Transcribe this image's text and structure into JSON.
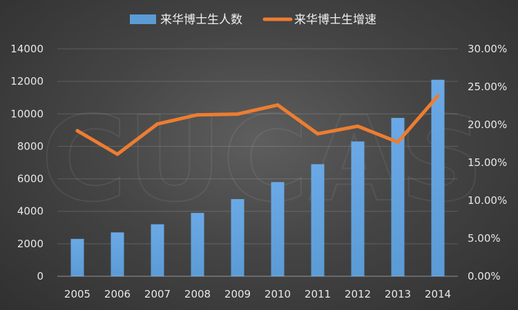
{
  "watermark": "CUCAS",
  "chart_data": {
    "type": "bar",
    "categories": [
      "2005",
      "2006",
      "2007",
      "2008",
      "2009",
      "2010",
      "2011",
      "2012",
      "2013",
      "2014"
    ],
    "series": [
      {
        "name": "来华博士生人数",
        "type": "bar",
        "axis": "left",
        "color": "#5b9bd5",
        "values": [
          2300,
          2700,
          3200,
          3900,
          4750,
          5800,
          6900,
          8300,
          9750,
          12100
        ]
      },
      {
        "name": "来华博士生增速",
        "type": "line",
        "axis": "right",
        "color": "#ed7d31",
        "values": [
          0.192,
          0.161,
          0.201,
          0.213,
          0.214,
          0.226,
          0.188,
          0.198,
          0.177,
          0.238
        ]
      }
    ],
    "y_left": {
      "lim": [
        0,
        14000
      ],
      "ticks": [
        "0",
        "2000",
        "4000",
        "6000",
        "8000",
        "10000",
        "12000",
        "14000"
      ]
    },
    "y_right": {
      "lim": [
        0,
        0.3
      ],
      "ticks": [
        "0.00%",
        "5.00%",
        "10.00%",
        "15.00%",
        "20.00%",
        "25.00%",
        "30.00%"
      ]
    },
    "grid": true,
    "legend": "top-center"
  }
}
